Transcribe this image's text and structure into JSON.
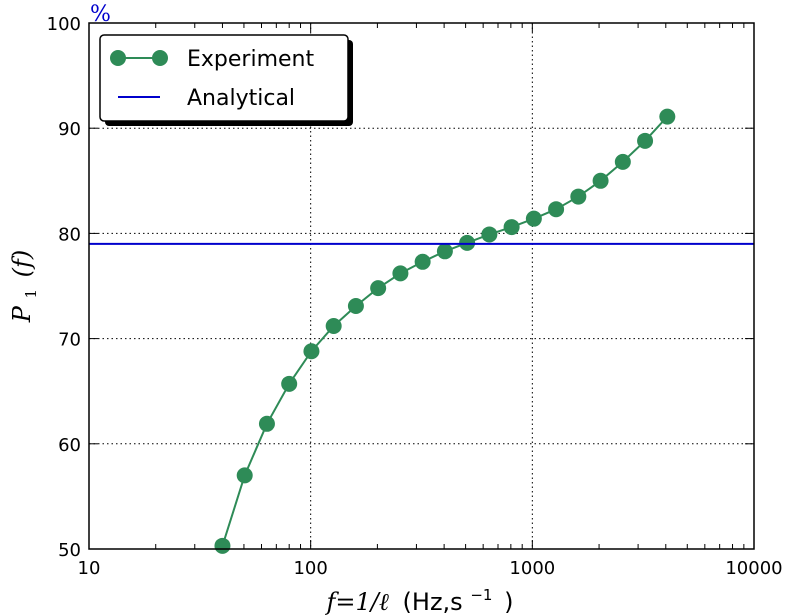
{
  "chart_data": {
    "type": "line",
    "xscale": "log",
    "xlim": [
      10,
      10000
    ],
    "ylim": [
      50,
      100
    ],
    "x_ticks": [
      10,
      100,
      1000,
      10000
    ],
    "x_tick_labels": [
      "10",
      "100",
      "1000",
      "10000"
    ],
    "y_ticks": [
      50,
      60,
      70,
      80,
      90,
      100
    ],
    "y_tick_labels": [
      "50",
      "60",
      "70",
      "80",
      "90",
      "100"
    ],
    "y_unit": "%",
    "xlabel_math": "f=1/ℓ",
    "xlabel_units": "(Hz,s",
    "xlabel_exp": "−1",
    "xlabel_close": ")",
    "ylabel_script": "P",
    "ylabel_sub": "1",
    "ylabel_arg": "(f)",
    "grid": true,
    "legend_position": "top-left",
    "series": [
      {
        "name": "Experiment",
        "color": "#2e8b57",
        "marker": "circle",
        "x": [
          40,
          50.4,
          63.5,
          80,
          100.8,
          127,
          160,
          201.6,
          254,
          320,
          403.2,
          508,
          640,
          806.3,
          1016,
          1280,
          1612.7,
          2032,
          2560,
          3225.4,
          4064
        ],
        "y": [
          50.3,
          57.0,
          61.9,
          65.7,
          68.8,
          71.2,
          73.1,
          74.8,
          76.2,
          77.3,
          78.3,
          79.1,
          79.9,
          80.6,
          81.4,
          82.3,
          83.5,
          85.0,
          86.8,
          88.8,
          91.1
        ]
      },
      {
        "name": "Analytical",
        "color": "#0000cc",
        "marker": "none",
        "x": [
          10,
          10000
        ],
        "y": [
          79.0,
          79.0
        ]
      }
    ]
  }
}
